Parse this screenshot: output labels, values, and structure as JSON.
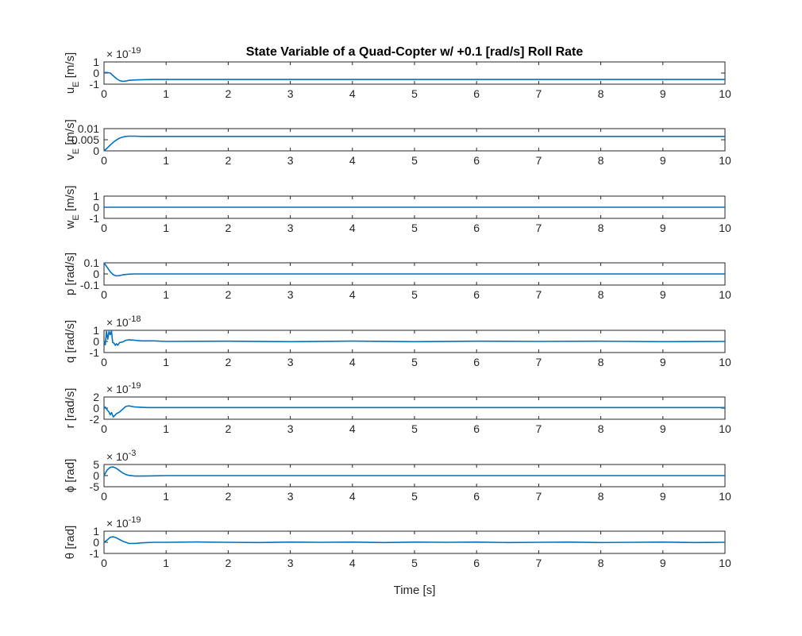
{
  "figure": {
    "title": "State Variable of a Quad-Copter w/ +0.1 [rad/s] Roll Rate",
    "xlabel": "Time [s]",
    "line_color": "#0072BD"
  },
  "chart_data": [
    {
      "type": "line",
      "ylabel_main": "u",
      "ylabel_sub": "E",
      "ylabel_unit": " [m/s]",
      "exponent_label": "× 10^-19",
      "exponent_base": "× 10",
      "exponent_power": "-19",
      "xlim": [
        0,
        10
      ],
      "ylim": [
        -1,
        1
      ],
      "xticks": [
        0,
        1,
        2,
        3,
        4,
        5,
        6,
        7,
        8,
        9,
        10
      ],
      "yticks": [
        -1,
        0,
        1
      ],
      "ytick_labels": [
        "-1",
        "0",
        "1"
      ],
      "series": [
        {
          "x": [
            0,
            0.05,
            0.1,
            0.15,
            0.2,
            0.25,
            0.3,
            0.35,
            0.4,
            0.5,
            0.6,
            0.8,
            10
          ],
          "y": [
            0.05,
            0.05,
            0.0,
            -0.25,
            -0.5,
            -0.68,
            -0.75,
            -0.72,
            -0.66,
            -0.62,
            -0.6,
            -0.58,
            -0.58
          ]
        }
      ]
    },
    {
      "type": "line",
      "ylabel_main": "v",
      "ylabel_sub": "E",
      "ylabel_unit": " [m/s]",
      "exponent_label": "",
      "exponent_base": "",
      "exponent_power": "",
      "xlim": [
        0,
        10
      ],
      "ylim": [
        0,
        0.01
      ],
      "xticks": [
        0,
        1,
        2,
        3,
        4,
        5,
        6,
        7,
        8,
        9,
        10
      ],
      "yticks": [
        0,
        0.005,
        0.01
      ],
      "ytick_labels": [
        "0",
        "0.005",
        "0.01"
      ],
      "series": [
        {
          "x": [
            0,
            0.05,
            0.1,
            0.15,
            0.2,
            0.25,
            0.3,
            0.35,
            0.4,
            0.5,
            0.6,
            1,
            10
          ],
          "y": [
            0,
            0.0012,
            0.0026,
            0.0039,
            0.0049,
            0.0057,
            0.0062,
            0.0065,
            0.0066,
            0.0066,
            0.0065,
            0.0065,
            0.0065
          ]
        }
      ]
    },
    {
      "type": "line",
      "ylabel_main": "w",
      "ylabel_sub": "E",
      "ylabel_unit": " [m/s]",
      "exponent_label": "",
      "exponent_base": "",
      "exponent_power": "",
      "xlim": [
        0,
        10
      ],
      "ylim": [
        -1,
        1
      ],
      "xticks": [
        0,
        1,
        2,
        3,
        4,
        5,
        6,
        7,
        8,
        9,
        10
      ],
      "yticks": [
        -1,
        0,
        1
      ],
      "ytick_labels": [
        "-1",
        "0",
        "1"
      ],
      "series": [
        {
          "x": [
            0,
            10
          ],
          "y": [
            0,
            0
          ]
        }
      ]
    },
    {
      "type": "line",
      "ylabel_main": "p [rad/s]",
      "ylabel_sub": "",
      "ylabel_unit": "",
      "exponent_label": "",
      "exponent_base": "",
      "exponent_power": "",
      "xlim": [
        0,
        10
      ],
      "ylim": [
        -0.1,
        0.1
      ],
      "xticks": [
        0,
        1,
        2,
        3,
        4,
        5,
        6,
        7,
        8,
        9,
        10
      ],
      "yticks": [
        -0.1,
        0,
        0.1
      ],
      "ytick_labels": [
        "-0.1",
        "0",
        "0.1"
      ],
      "series": [
        {
          "x": [
            0,
            0.05,
            0.1,
            0.15,
            0.2,
            0.25,
            0.3,
            0.4,
            0.5,
            0.6,
            1,
            10
          ],
          "y": [
            0.1,
            0.06,
            0.02,
            -0.008,
            -0.018,
            -0.015,
            -0.008,
            -0.002,
            0.0,
            0.0,
            0.0,
            0.0
          ]
        }
      ]
    },
    {
      "type": "line",
      "ylabel_main": "q [rad/s]",
      "ylabel_sub": "",
      "ylabel_unit": "",
      "exponent_label": "× 10^-18",
      "exponent_base": "× 10",
      "exponent_power": "-18",
      "xlim": [
        0,
        10
      ],
      "ylim": [
        -1,
        1
      ],
      "xticks": [
        0,
        1,
        2,
        3,
        4,
        5,
        6,
        7,
        8,
        9,
        10
      ],
      "yticks": [
        -1,
        0,
        1
      ],
      "ytick_labels": [
        "-1",
        "0",
        "1"
      ],
      "series": [
        {
          "x": [
            0,
            0.02,
            0.04,
            0.06,
            0.08,
            0.1,
            0.12,
            0.14,
            0.16,
            0.18,
            0.2,
            0.22,
            0.25,
            0.3,
            0.35,
            0.4,
            0.5,
            0.6,
            0.8,
            1.0,
            2.0,
            3.0,
            4.0,
            5.0,
            6.0,
            7.0,
            8.0,
            9.0,
            10.0
          ],
          "y": [
            0,
            -0.3,
            0.9,
            0.2,
            0.9,
            0.6,
            0.95,
            -0.1,
            -0.15,
            -0.35,
            -0.2,
            -0.35,
            -0.1,
            -0.05,
            0.1,
            0.15,
            0.1,
            0.05,
            0.05,
            0.0,
            0.02,
            -0.02,
            0.03,
            -0.02,
            0.02,
            0.0,
            0.02,
            -0.02,
            0.0
          ]
        }
      ]
    },
    {
      "type": "line",
      "ylabel_main": "r [rad/s]",
      "ylabel_sub": "",
      "ylabel_unit": "",
      "exponent_label": "× 10^-19",
      "exponent_base": "× 10",
      "exponent_power": "-19",
      "xlim": [
        0,
        10
      ],
      "ylim": [
        -2,
        2
      ],
      "xticks": [
        0,
        1,
        2,
        3,
        4,
        5,
        6,
        7,
        8,
        9,
        10
      ],
      "yticks": [
        -2,
        0,
        2
      ],
      "ytick_labels": [
        "-2",
        "0",
        "2"
      ],
      "series": [
        {
          "x": [
            0,
            0.02,
            0.05,
            0.08,
            0.1,
            0.12,
            0.15,
            0.2,
            0.25,
            0.3,
            0.35,
            0.4,
            0.5,
            0.7,
            1,
            10
          ],
          "y": [
            0,
            0.2,
            -0.3,
            -0.7,
            -1.2,
            -0.8,
            -1.6,
            -1.0,
            -0.7,
            -0.2,
            0.3,
            0.4,
            0.2,
            0.1,
            0.1,
            0.1
          ]
        }
      ]
    },
    {
      "type": "line",
      "ylabel_main": "ϕ [rad]",
      "ylabel_sub": "",
      "ylabel_unit": "",
      "exponent_label": "× 10^-3",
      "exponent_base": "× 10",
      "exponent_power": "-3",
      "xlim": [
        0,
        10
      ],
      "ylim": [
        -5,
        5
      ],
      "xticks": [
        0,
        1,
        2,
        3,
        4,
        5,
        6,
        7,
        8,
        9,
        10
      ],
      "yticks": [
        -5,
        0,
        5
      ],
      "ytick_labels": [
        "-5",
        "0",
        "5"
      ],
      "series": [
        {
          "x": [
            0,
            0.05,
            0.1,
            0.15,
            0.2,
            0.25,
            0.3,
            0.35,
            0.4,
            0.5,
            0.6,
            0.8,
            1,
            10
          ],
          "y": [
            0,
            2.5,
            3.7,
            3.9,
            3.3,
            2.2,
            1.2,
            0.5,
            0.1,
            -0.2,
            -0.2,
            -0.1,
            0.0,
            0.0
          ]
        }
      ]
    },
    {
      "type": "line",
      "ylabel_main": "θ [rad]",
      "ylabel_sub": "",
      "ylabel_unit": "",
      "exponent_label": "× 10^-19",
      "exponent_base": "× 10",
      "exponent_power": "-19",
      "xlim": [
        0,
        10
      ],
      "ylim": [
        -1,
        1
      ],
      "xticks": [
        0,
        1,
        2,
        3,
        4,
        5,
        6,
        7,
        8,
        9,
        10
      ],
      "yticks": [
        -1,
        0,
        1
      ],
      "ytick_labels": [
        "-1",
        "0",
        "1"
      ],
      "series": [
        {
          "x": [
            0,
            0.05,
            0.1,
            0.15,
            0.2,
            0.25,
            0.3,
            0.35,
            0.4,
            0.5,
            0.6,
            0.8,
            1,
            1.5,
            2,
            2.5,
            3,
            3.5,
            4,
            4.5,
            5,
            5.5,
            6,
            6.5,
            7,
            7.5,
            8,
            8.5,
            9,
            9.5,
            10
          ],
          "y": [
            0,
            0.2,
            0.45,
            0.5,
            0.4,
            0.25,
            0.1,
            0.0,
            -0.1,
            -0.1,
            -0.05,
            0.0,
            0.0,
            0.03,
            0.0,
            -0.02,
            0.02,
            0.0,
            0.02,
            -0.02,
            0.02,
            0.0,
            0.02,
            -0.02,
            0.0,
            0.02,
            -0.02,
            0.0,
            0.02,
            -0.02,
            0.0
          ]
        }
      ]
    }
  ]
}
